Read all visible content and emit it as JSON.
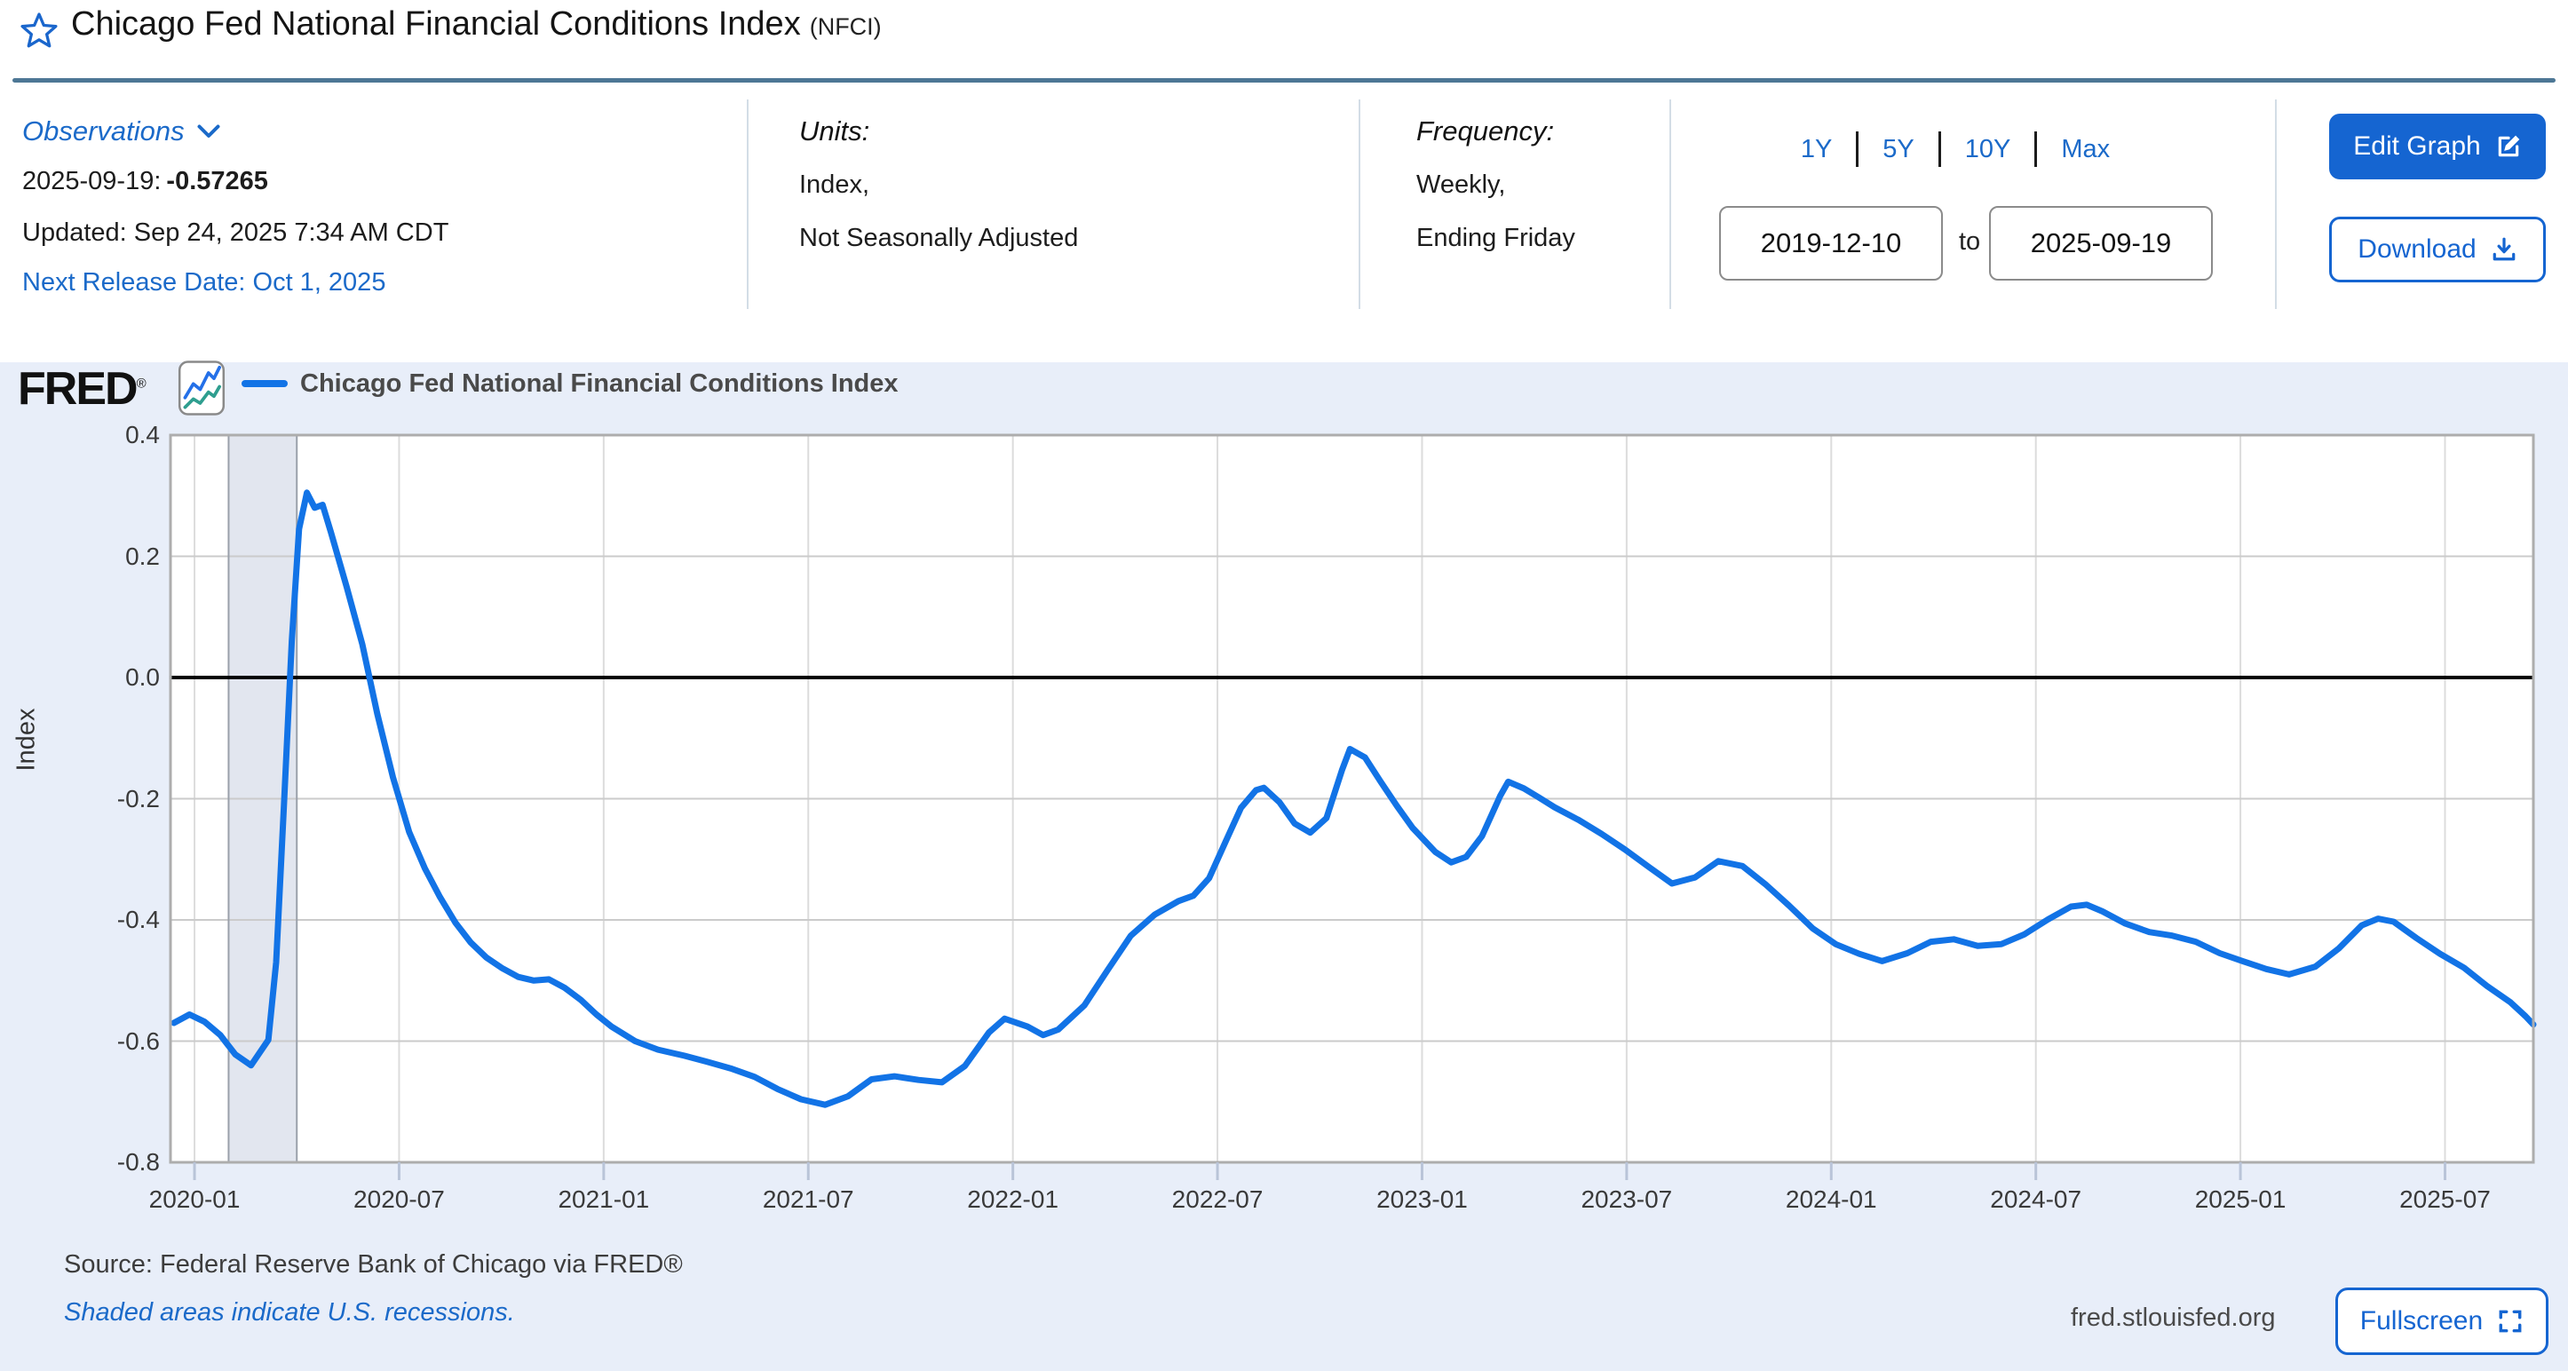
{
  "header": {
    "title": "Chicago Fed National Financial Conditions Index",
    "title_suffix": "(NFCI)"
  },
  "observations": {
    "label": "Observations",
    "latest_date": "2025-09-19:",
    "latest_value": "-0.57265",
    "updated": "Updated: Sep 24, 2025 7:34 AM CDT",
    "next_release": "Next Release Date: Oct 1, 2025"
  },
  "units": {
    "label": "Units:",
    "line1": "Index,",
    "line2": "Not Seasonally Adjusted"
  },
  "frequency": {
    "label": "Frequency:",
    "line1": "Weekly,",
    "line2": "Ending Friday"
  },
  "range": {
    "presets": [
      "1Y",
      "5Y",
      "10Y",
      "Max"
    ],
    "start": "2019-12-10",
    "to_label": "to",
    "end": "2025-09-19"
  },
  "actions": {
    "edit_graph": "Edit Graph",
    "download": "Download",
    "fullscreen": "Fullscreen"
  },
  "branding": {
    "logo": "FRED",
    "registered": "®",
    "site": "fred.stlouisfed.org"
  },
  "footer": {
    "source": "Source: Federal Reserve Bank of Chicago via FRED®",
    "note": "Shaded areas indicate U.S. recessions."
  },
  "colors": {
    "accent_blue": "#1565d1",
    "link_blue": "#1b6ac9",
    "line_blue": "#1273e6",
    "panel_bg": "#e8eef9",
    "recession_fill": "#e2e6ef",
    "title_rule": "#4d7795"
  },
  "chart_data": {
    "type": "line",
    "title": "Chicago Fed National Financial Conditions Index",
    "legend": "Chicago Fed National Financial Conditions Index",
    "ylabel": "Index",
    "xlabel": "",
    "ylim": [
      -0.8,
      0.4
    ],
    "x_range": [
      "2019-12-10",
      "2025-09-19"
    ],
    "grid": true,
    "zero_line": 0.0,
    "line_color": "#1273e6",
    "recession_band": [
      "2020-02-01",
      "2020-04-01"
    ],
    "y_ticks": [
      {
        "label": "0.4",
        "value": 0.4
      },
      {
        "label": "0.2",
        "value": 0.2
      },
      {
        "label": "0.0",
        "value": 0.0
      },
      {
        "label": "-0.2",
        "value": -0.2
      },
      {
        "label": "-0.4",
        "value": -0.4
      },
      {
        "label": "-0.6",
        "value": -0.6
      },
      {
        "label": "-0.8",
        "value": -0.8
      }
    ],
    "x_ticks": [
      {
        "label": "2020-01",
        "date": "2020-01-01"
      },
      {
        "label": "2020-07",
        "date": "2020-07-01"
      },
      {
        "label": "2021-01",
        "date": "2021-01-01"
      },
      {
        "label": "2021-07",
        "date": "2021-07-01"
      },
      {
        "label": "2022-01",
        "date": "2022-01-01"
      },
      {
        "label": "2022-07",
        "date": "2022-07-01"
      },
      {
        "label": "2023-01",
        "date": "2023-01-01"
      },
      {
        "label": "2023-07",
        "date": "2023-07-01"
      },
      {
        "label": "2024-01",
        "date": "2024-01-01"
      },
      {
        "label": "2024-07",
        "date": "2024-07-01"
      },
      {
        "label": "2025-01",
        "date": "2025-01-01"
      },
      {
        "label": "2025-07",
        "date": "2025-07-01"
      }
    ],
    "series": [
      [
        "2019-12-13",
        -0.57
      ],
      [
        "2019-12-27",
        -0.556
      ],
      [
        "2020-01-10",
        -0.568
      ],
      [
        "2020-01-24",
        -0.59
      ],
      [
        "2020-02-07",
        -0.622
      ],
      [
        "2020-02-21",
        -0.64
      ],
      [
        "2020-03-06",
        -0.598
      ],
      [
        "2020-03-13",
        -0.47
      ],
      [
        "2020-03-20",
        -0.21
      ],
      [
        "2020-03-27",
        0.06
      ],
      [
        "2020-04-03",
        0.245
      ],
      [
        "2020-04-10",
        0.305
      ],
      [
        "2020-04-17",
        0.28
      ],
      [
        "2020-04-24",
        0.285
      ],
      [
        "2020-05-01",
        0.24
      ],
      [
        "2020-05-15",
        0.15
      ],
      [
        "2020-05-29",
        0.055
      ],
      [
        "2020-06-12",
        -0.06
      ],
      [
        "2020-06-26",
        -0.165
      ],
      [
        "2020-07-10",
        -0.255
      ],
      [
        "2020-07-24",
        -0.315
      ],
      [
        "2020-08-07",
        -0.362
      ],
      [
        "2020-08-21",
        -0.405
      ],
      [
        "2020-09-04",
        -0.437
      ],
      [
        "2020-09-18",
        -0.462
      ],
      [
        "2020-10-02",
        -0.48
      ],
      [
        "2020-10-16",
        -0.494
      ],
      [
        "2020-10-30",
        -0.5
      ],
      [
        "2020-11-13",
        -0.498
      ],
      [
        "2020-11-27",
        -0.512
      ],
      [
        "2020-12-11",
        -0.532
      ],
      [
        "2020-12-25",
        -0.556
      ],
      [
        "2021-01-08",
        -0.576
      ],
      [
        "2021-01-29",
        -0.6
      ],
      [
        "2021-02-19",
        -0.614
      ],
      [
        "2021-03-12",
        -0.624
      ],
      [
        "2021-04-02",
        -0.634
      ],
      [
        "2021-04-23",
        -0.645
      ],
      [
        "2021-05-14",
        -0.659
      ],
      [
        "2021-06-04",
        -0.679
      ],
      [
        "2021-06-25",
        -0.696
      ],
      [
        "2021-07-16",
        -0.705
      ],
      [
        "2021-08-06",
        -0.691
      ],
      [
        "2021-08-27",
        -0.663
      ],
      [
        "2021-09-17",
        -0.658
      ],
      [
        "2021-10-08",
        -0.664
      ],
      [
        "2021-10-29",
        -0.668
      ],
      [
        "2021-11-19",
        -0.641
      ],
      [
        "2021-12-10",
        -0.586
      ],
      [
        "2021-12-24",
        -0.563
      ],
      [
        "2022-01-14",
        -0.576
      ],
      [
        "2022-01-28",
        -0.59
      ],
      [
        "2022-02-11",
        -0.581
      ],
      [
        "2022-03-04",
        -0.541
      ],
      [
        "2022-03-25",
        -0.482
      ],
      [
        "2022-04-15",
        -0.426
      ],
      [
        "2022-05-06",
        -0.391
      ],
      [
        "2022-05-27",
        -0.369
      ],
      [
        "2022-06-10",
        -0.36
      ],
      [
        "2022-06-24",
        -0.331
      ],
      [
        "2022-07-08",
        -0.272
      ],
      [
        "2022-07-22",
        -0.215
      ],
      [
        "2022-08-05",
        -0.186
      ],
      [
        "2022-08-12",
        -0.182
      ],
      [
        "2022-08-26",
        -0.206
      ],
      [
        "2022-09-09",
        -0.241
      ],
      [
        "2022-09-23",
        -0.256
      ],
      [
        "2022-10-07",
        -0.232
      ],
      [
        "2022-10-21",
        -0.152
      ],
      [
        "2022-10-28",
        -0.118
      ],
      [
        "2022-11-11",
        -0.132
      ],
      [
        "2022-11-25",
        -0.172
      ],
      [
        "2022-12-09",
        -0.212
      ],
      [
        "2022-12-23",
        -0.248
      ],
      [
        "2023-01-13",
        -0.288
      ],
      [
        "2023-01-27",
        -0.305
      ],
      [
        "2023-02-10",
        -0.296
      ],
      [
        "2023-02-24",
        -0.262
      ],
      [
        "2023-03-10",
        -0.195
      ],
      [
        "2023-03-17",
        -0.172
      ],
      [
        "2023-03-31",
        -0.183
      ],
      [
        "2023-04-14",
        -0.198
      ],
      [
        "2023-04-28",
        -0.214
      ],
      [
        "2023-05-19",
        -0.235
      ],
      [
        "2023-06-09",
        -0.258
      ],
      [
        "2023-06-30",
        -0.284
      ],
      [
        "2023-07-21",
        -0.313
      ],
      [
        "2023-08-11",
        -0.34
      ],
      [
        "2023-09-01",
        -0.33
      ],
      [
        "2023-09-22",
        -0.303
      ],
      [
        "2023-10-13",
        -0.311
      ],
      [
        "2023-11-03",
        -0.341
      ],
      [
        "2023-11-24",
        -0.376
      ],
      [
        "2023-12-15",
        -0.414
      ],
      [
        "2024-01-05",
        -0.44
      ],
      [
        "2024-01-26",
        -0.456
      ],
      [
        "2024-02-16",
        -0.468
      ],
      [
        "2024-03-08",
        -0.455
      ],
      [
        "2024-03-29",
        -0.436
      ],
      [
        "2024-04-19",
        -0.432
      ],
      [
        "2024-05-10",
        -0.443
      ],
      [
        "2024-05-31",
        -0.44
      ],
      [
        "2024-06-21",
        -0.424
      ],
      [
        "2024-07-12",
        -0.399
      ],
      [
        "2024-08-02",
        -0.378
      ],
      [
        "2024-08-16",
        -0.375
      ],
      [
        "2024-08-30",
        -0.386
      ],
      [
        "2024-09-20",
        -0.406
      ],
      [
        "2024-10-11",
        -0.42
      ],
      [
        "2024-11-01",
        -0.426
      ],
      [
        "2024-11-22",
        -0.436
      ],
      [
        "2024-12-13",
        -0.455
      ],
      [
        "2025-01-03",
        -0.468
      ],
      [
        "2025-01-24",
        -0.481
      ],
      [
        "2025-02-14",
        -0.49
      ],
      [
        "2025-03-07",
        -0.477
      ],
      [
        "2025-03-28",
        -0.447
      ],
      [
        "2025-04-18",
        -0.409
      ],
      [
        "2025-05-02",
        -0.398
      ],
      [
        "2025-05-16",
        -0.403
      ],
      [
        "2025-06-06",
        -0.43
      ],
      [
        "2025-06-27",
        -0.456
      ],
      [
        "2025-07-18",
        -0.479
      ],
      [
        "2025-08-08",
        -0.509
      ],
      [
        "2025-08-29",
        -0.536
      ],
      [
        "2025-09-12",
        -0.559
      ],
      [
        "2025-09-19",
        -0.57265
      ]
    ]
  }
}
